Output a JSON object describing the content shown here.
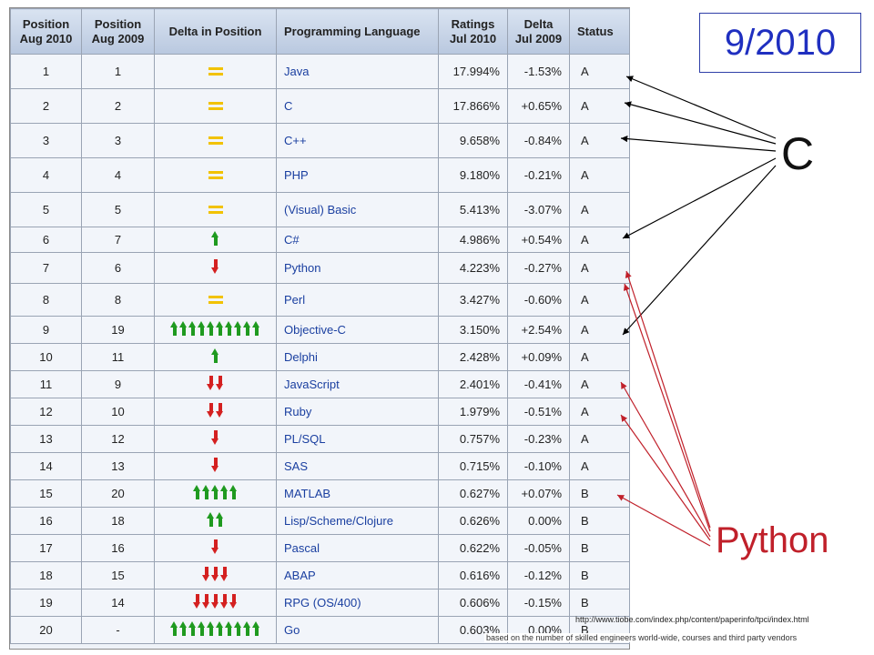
{
  "title": "9/2010",
  "annotations": {
    "c_label": "C",
    "python_label": "Python",
    "url": "http://www.tiobe.com/index.php/content/paperinfo/tpci/index.html",
    "note": "based on the number of skilled engineers world-wide, courses and third party vendors"
  },
  "colors": {
    "title": "#1f2fc0",
    "python": "#c0202a",
    "up": "#1f9a1f",
    "down": "#d42020",
    "same": "#f2c200"
  },
  "headers": {
    "pos2010": [
      "Position",
      "Aug 2010"
    ],
    "pos2009": [
      "Position",
      "Aug 2009"
    ],
    "delta": "Delta in Position",
    "lang": "Programming Language",
    "ratings": [
      "Ratings",
      "Jul 2010"
    ],
    "deltajul": [
      "Delta",
      "Jul 2009"
    ],
    "status": "Status"
  },
  "rows": [
    {
      "p10": "1",
      "p09": "1",
      "dir": "same",
      "n": 0,
      "lang": "Java",
      "rating": "17.994%",
      "delta": "-1.53%",
      "status": "A"
    },
    {
      "p10": "2",
      "p09": "2",
      "dir": "same",
      "n": 0,
      "lang": "C",
      "rating": "17.866%",
      "delta": "+0.65%",
      "status": "A"
    },
    {
      "p10": "3",
      "p09": "3",
      "dir": "same",
      "n": 0,
      "lang": "C++",
      "rating": "9.658%",
      "delta": "-0.84%",
      "status": "A"
    },
    {
      "p10": "4",
      "p09": "4",
      "dir": "same",
      "n": 0,
      "lang": "PHP",
      "rating": "9.180%",
      "delta": "-0.21%",
      "status": "A"
    },
    {
      "p10": "5",
      "p09": "5",
      "dir": "same",
      "n": 0,
      "lang": "(Visual) Basic",
      "rating": "5.413%",
      "delta": "-3.07%",
      "status": "A"
    },
    {
      "p10": "6",
      "p09": "7",
      "dir": "up",
      "n": 1,
      "lang": "C#",
      "rating": "4.986%",
      "delta": "+0.54%",
      "status": "A"
    },
    {
      "p10": "7",
      "p09": "6",
      "dir": "down",
      "n": 1,
      "lang": "Python",
      "rating": "4.223%",
      "delta": "-0.27%",
      "status": "A"
    },
    {
      "p10": "8",
      "p09": "8",
      "dir": "same",
      "n": 0,
      "lang": "Perl",
      "rating": "3.427%",
      "delta": "-0.60%",
      "status": "A"
    },
    {
      "p10": "9",
      "p09": "19",
      "dir": "up",
      "n": 10,
      "lang": "Objective-C",
      "rating": "3.150%",
      "delta": "+2.54%",
      "status": "A"
    },
    {
      "p10": "10",
      "p09": "11",
      "dir": "up",
      "n": 1,
      "lang": "Delphi",
      "rating": "2.428%",
      "delta": "+0.09%",
      "status": "A"
    },
    {
      "p10": "11",
      "p09": "9",
      "dir": "down",
      "n": 2,
      "lang": "JavaScript",
      "rating": "2.401%",
      "delta": "-0.41%",
      "status": "A"
    },
    {
      "p10": "12",
      "p09": "10",
      "dir": "down",
      "n": 2,
      "lang": "Ruby",
      "rating": "1.979%",
      "delta": "-0.51%",
      "status": "A"
    },
    {
      "p10": "13",
      "p09": "12",
      "dir": "down",
      "n": 1,
      "lang": "PL/SQL",
      "rating": "0.757%",
      "delta": "-0.23%",
      "status": "A"
    },
    {
      "p10": "14",
      "p09": "13",
      "dir": "down",
      "n": 1,
      "lang": "SAS",
      "rating": "0.715%",
      "delta": "-0.10%",
      "status": "A"
    },
    {
      "p10": "15",
      "p09": "20",
      "dir": "up",
      "n": 5,
      "lang": "MATLAB",
      "rating": "0.627%",
      "delta": "+0.07%",
      "status": "B"
    },
    {
      "p10": "16",
      "p09": "18",
      "dir": "up",
      "n": 2,
      "lang": "Lisp/Scheme/Clojure",
      "rating": "0.626%",
      "delta": "0.00%",
      "status": "B"
    },
    {
      "p10": "17",
      "p09": "16",
      "dir": "down",
      "n": 1,
      "lang": "Pascal",
      "rating": "0.622%",
      "delta": "-0.05%",
      "status": "B"
    },
    {
      "p10": "18",
      "p09": "15",
      "dir": "down",
      "n": 3,
      "lang": "ABAP",
      "rating": "0.616%",
      "delta": "-0.12%",
      "status": "B"
    },
    {
      "p10": "19",
      "p09": "14",
      "dir": "down",
      "n": 5,
      "lang": "RPG (OS/400)",
      "rating": "0.606%",
      "delta": "-0.15%",
      "status": "B"
    },
    {
      "p10": "20",
      "p09": "-",
      "dir": "up",
      "n": 10,
      "lang": "Go",
      "rating": "0.603%",
      "delta": "0.00%",
      "status": "B"
    }
  ]
}
